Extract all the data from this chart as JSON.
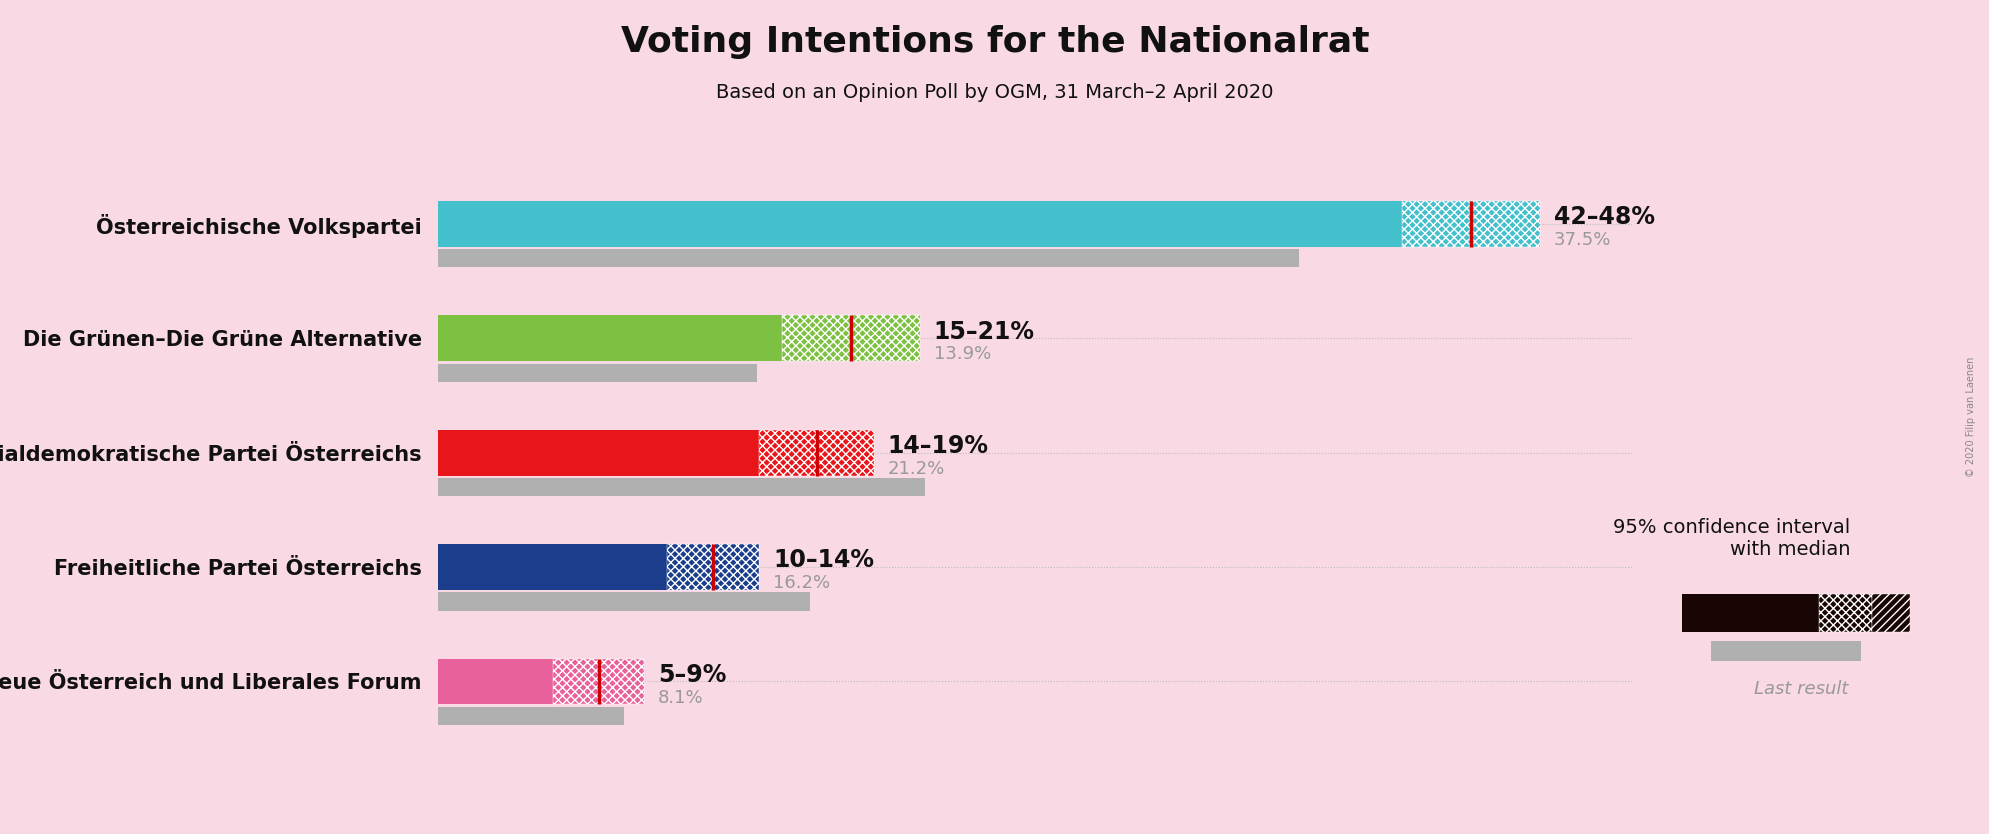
{
  "title": "Voting Intentions for the Nationalrat",
  "subtitle": "Based on an Opinion Poll by OGM, 31 March–2 April 2020",
  "background_color": "#f9d9e3",
  "parties": [
    "Österreichische Volkspartei",
    "Die Grünen–Die Grüne Alternative",
    "Sozialdemokratische Partei Österreichs",
    "Freiheitliche Partei Österreichs",
    "NEOS–Das Neue Österreich und Liberales Forum"
  ],
  "colors": [
    "#44bfcc",
    "#7dc142",
    "#e8161a",
    "#1a3e8c",
    "#e8619a"
  ],
  "ci_low": [
    42,
    15,
    14,
    10,
    5
  ],
  "ci_high": [
    48,
    21,
    19,
    14,
    9
  ],
  "median": [
    45,
    18,
    16.5,
    12,
    7
  ],
  "last_result": [
    37.5,
    13.9,
    21.2,
    16.2,
    8.1
  ],
  "ci_labels": [
    "42–48%",
    "15–21%",
    "14–19%",
    "10–14%",
    "5–9%"
  ],
  "last_labels": [
    "37.5%",
    "13.9%",
    "21.2%",
    "16.2%",
    "8.1%"
  ],
  "median_line_color": "#cc0000",
  "last_result_color": "#b0b0b0",
  "dotted_color": "#bbbbbb",
  "copyright_text": "© 2020 Filip van Laenen",
  "xlim": [
    0,
    52
  ]
}
